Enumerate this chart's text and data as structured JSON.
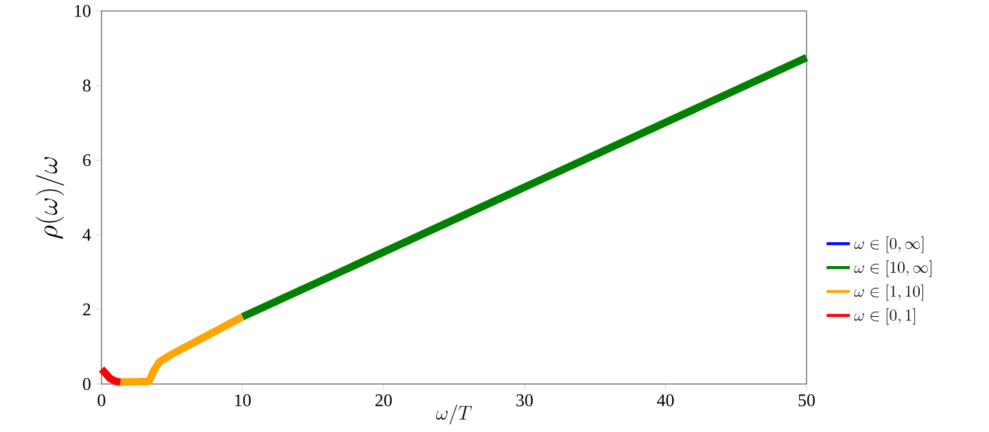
{
  "chart_data": {
    "type": "line",
    "xlabel": "\\omega/T",
    "ylabel": "\\rho(\\omega)/\\omega",
    "xlim": [
      0,
      50
    ],
    "ylim": [
      0,
      10
    ],
    "xticks": [
      0,
      10,
      20,
      30,
      40,
      50
    ],
    "yticks": [
      0,
      2,
      4,
      6,
      8,
      10
    ],
    "legend": "right",
    "grid": false,
    "series": [
      {
        "name": "\\omega \\in [0,\\infty]",
        "color": "#0000ff"
      },
      {
        "name": "\\omega \\in [10,\\infty]",
        "color": "#008000",
        "x": [
          10,
          50
        ],
        "values": [
          1.8,
          8.75
        ]
      },
      {
        "name": "\\omega \\in [1,10]",
        "color": "#ffa500",
        "x": [
          1.33,
          2.5,
          3.37,
          3.7,
          4.1,
          5,
          6,
          7,
          8,
          9,
          10
        ],
        "values": [
          0.05,
          0.06,
          0.07,
          0.35,
          0.59,
          0.8,
          1.0,
          1.2,
          1.4,
          1.6,
          1.8
        ]
      },
      {
        "name": "\\omega \\in [0,1]",
        "color": "#ff0000",
        "x": [
          0,
          0.3,
          0.6,
          1.0,
          1.33
        ],
        "values": [
          0.4,
          0.28,
          0.15,
          0.07,
          0.05
        ]
      }
    ]
  }
}
